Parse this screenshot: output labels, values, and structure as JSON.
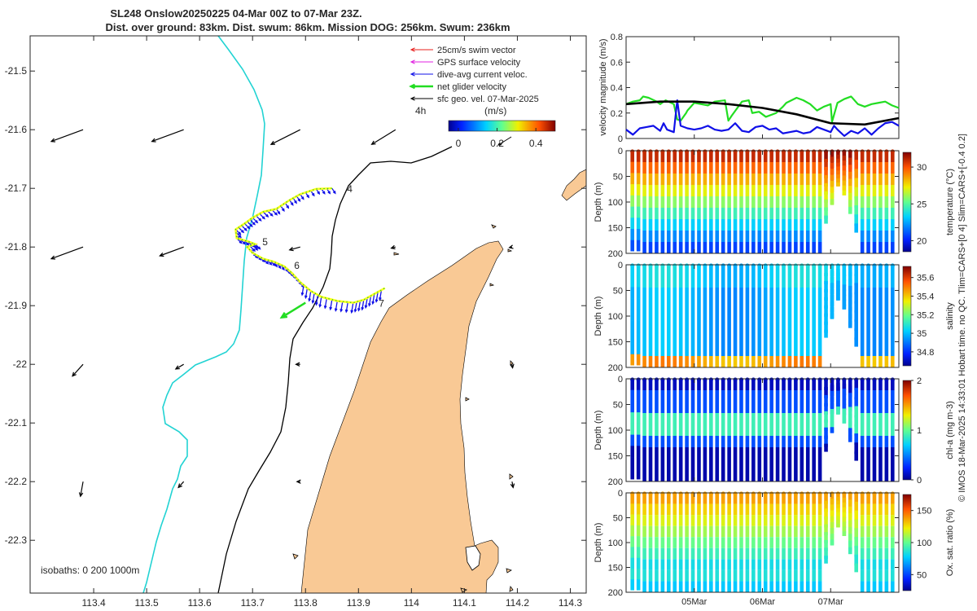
{
  "header": {
    "title_line1": "SL248 Onslow20250225 04-Mar 00Z to 07-Mar 23Z.",
    "title_line2": "Dist. over ground: 83km. Dist. swum: 86km. Mission DOG: 256km. Swum: 236km"
  },
  "colors": {
    "land": "#f9c995",
    "coast200": "#000000",
    "coast0": "#22d3d3",
    "swim": "#e8201e",
    "gps": "#e020e0",
    "current": "#1010e8",
    "net": "#22dd22",
    "geo": "#000000"
  },
  "chart_data": [
    {
      "type": "map",
      "x_ticks": [
        "113.4",
        "113.5",
        "113.6",
        "113.7",
        "113.8",
        "113.9",
        "114",
        "114.1",
        "114.2",
        "114.3"
      ],
      "y_ticks": [
        "-21.5",
        "-21.6",
        "-21.7",
        "-21.8",
        "-21.9",
        "-22",
        "-22.1",
        "-22.2",
        "-22.3"
      ],
      "xlim": [
        113.28,
        114.33
      ],
      "ylim": [
        -22.39,
        -21.44
      ],
      "legend": [
        {
          "label": "25cm/s swim vector",
          "color": "#e8201e"
        },
        {
          "label": "GPS surface velocity",
          "color": "#e020e0"
        },
        {
          "label": "dive-avg current veloc.",
          "color": "#1010e8"
        },
        {
          "label": "net glider velocity",
          "color": "#22dd22"
        },
        {
          "label": "sfc geo. vel. 07-Mar-2025",
          "color": "#000000"
        }
      ],
      "colorbar": {
        "label": "(m/s)",
        "ticks": [
          "0",
          "0.2",
          "0.4"
        ],
        "range": [
          -0.05,
          0.5
        ]
      },
      "time_step_label": "4h",
      "isobaths_label": "isobaths: 0   200  1000m",
      "day_markers": [
        {
          "label": "4",
          "lon": 113.86,
          "lat": -21.7
        },
        {
          "label": "5",
          "lon": 113.7,
          "lat": -21.79
        },
        {
          "label": "6",
          "lon": 113.76,
          "lat": -21.83
        },
        {
          "label": "7",
          "lon": 113.92,
          "lat": -21.895
        }
      ],
      "track": [
        [
          113.85,
          -21.7
        ],
        [
          113.82,
          -21.701
        ],
        [
          113.79,
          -21.71
        ],
        [
          113.77,
          -21.72
        ],
        [
          113.745,
          -21.735
        ],
        [
          113.72,
          -21.74
        ],
        [
          113.7,
          -21.75
        ],
        [
          113.685,
          -21.76
        ],
        [
          113.668,
          -21.77
        ],
        [
          113.67,
          -21.785
        ],
        [
          113.69,
          -21.79
        ],
        [
          113.705,
          -21.795
        ],
        [
          113.69,
          -21.8
        ],
        [
          113.7,
          -21.81
        ],
        [
          113.72,
          -21.82
        ],
        [
          113.74,
          -21.825
        ],
        [
          113.76,
          -21.833
        ],
        [
          113.775,
          -21.845
        ],
        [
          113.79,
          -21.86
        ],
        [
          113.81,
          -21.875
        ],
        [
          113.83,
          -21.885
        ],
        [
          113.86,
          -21.892
        ],
        [
          113.89,
          -21.895
        ],
        [
          113.91,
          -21.89
        ],
        [
          113.93,
          -21.88
        ],
        [
          113.95,
          -21.87
        ]
      ],
      "net_velocity": {
        "from": [
          113.8,
          -21.895
        ],
        "to": [
          113.755,
          -21.92
        ]
      },
      "geo_vectors": [
        {
          "lon": 113.38,
          "lat": -21.6,
          "u": -0.06,
          "v": -0.02
        },
        {
          "lon": 113.57,
          "lat": -21.6,
          "u": -0.06,
          "v": -0.02
        },
        {
          "lon": 113.79,
          "lat": -21.6,
          "u": -0.055,
          "v": -0.025
        },
        {
          "lon": 113.97,
          "lat": -21.6,
          "u": -0.045,
          "v": -0.025
        },
        {
          "lon": 113.38,
          "lat": -21.8,
          "u": -0.06,
          "v": -0.02
        },
        {
          "lon": 113.57,
          "lat": -21.8,
          "u": -0.045,
          "v": -0.015
        },
        {
          "lon": 113.79,
          "lat": -21.8,
          "u": -0.02,
          "v": -0.005
        },
        {
          "lon": 113.97,
          "lat": -21.8,
          "u": -0.008,
          "v": -0.002
        },
        {
          "lon": 114.19,
          "lat": -21.8,
          "u": -0.005,
          "v": -0.001
        },
        {
          "lon": 113.38,
          "lat": -22.0,
          "u": -0.02,
          "v": -0.02
        },
        {
          "lon": 113.57,
          "lat": -22.0,
          "u": -0.015,
          "v": -0.008
        },
        {
          "lon": 113.79,
          "lat": -22.0,
          "u": -0.008,
          "v": 0.0
        },
        {
          "lon": 114.19,
          "lat": -22.0,
          "u": 0.001,
          "v": -0.006
        },
        {
          "lon": 113.38,
          "lat": -22.2,
          "u": -0.005,
          "v": -0.025
        },
        {
          "lon": 113.57,
          "lat": -22.2,
          "u": -0.01,
          "v": -0.01
        },
        {
          "lon": 113.79,
          "lat": -22.2,
          "u": -0.006,
          "v": 0.0
        },
        {
          "lon": 114.19,
          "lat": -22.2,
          "u": 0.002,
          "v": -0.01
        }
      ]
    },
    {
      "type": "line",
      "ylabel": "velocity magnitude (m/s)",
      "ylim": [
        0,
        0.8
      ],
      "y_ticks": [
        "0",
        "0.2",
        "0.4",
        "0.6",
        "0.8"
      ],
      "x_ticks": [
        "05Mar",
        "06Mar",
        "07Mar"
      ],
      "x_days": [
        1,
        2,
        3
      ],
      "xlim": [
        0,
        4
      ],
      "series": [
        {
          "name": "net glider velocity",
          "color": "#22dd22",
          "x": [
            0,
            0.1,
            0.2,
            0.25,
            0.33,
            0.45,
            0.5,
            0.58,
            0.7,
            0.75,
            0.8,
            0.88,
            0.9,
            1.0,
            1.1,
            1.2,
            1.3,
            1.45,
            1.5,
            1.55,
            1.7,
            1.8,
            1.85,
            1.95,
            2.05,
            2.2,
            2.3,
            2.35,
            2.5,
            2.6,
            2.7,
            2.8,
            2.9,
            3.0,
            3.02,
            3.1,
            3.2,
            3.3,
            3.4,
            3.5,
            3.6,
            3.7,
            3.8,
            3.9,
            4.0
          ],
          "y": [
            0.27,
            0.29,
            0.3,
            0.33,
            0.32,
            0.29,
            0.27,
            0.3,
            0.27,
            0.15,
            0.14,
            0.2,
            0.22,
            0.28,
            0.27,
            0.26,
            0.29,
            0.3,
            0.14,
            0.18,
            0.29,
            0.3,
            0.2,
            0.21,
            0.17,
            0.2,
            0.25,
            0.28,
            0.32,
            0.3,
            0.27,
            0.22,
            0.25,
            0.27,
            0.13,
            0.28,
            0.31,
            0.33,
            0.27,
            0.25,
            0.27,
            0.28,
            0.29,
            0.26,
            0.24
          ]
        },
        {
          "name": "dive-avg current veloc.",
          "color": "#1010e8",
          "x": [
            0,
            0.1,
            0.2,
            0.3,
            0.4,
            0.5,
            0.55,
            0.6,
            0.7,
            0.75,
            0.8,
            0.9,
            1.0,
            1.1,
            1.2,
            1.3,
            1.4,
            1.5,
            1.6,
            1.7,
            1.8,
            1.9,
            2.0,
            2.1,
            2.2,
            2.3,
            2.4,
            2.5,
            2.6,
            2.7,
            2.8,
            2.9,
            3.0,
            3.05,
            3.1,
            3.2,
            3.3,
            3.4,
            3.5,
            3.6,
            3.7,
            3.8,
            3.9,
            4.0
          ],
          "y": [
            0.07,
            0.03,
            0.08,
            0.09,
            0.1,
            0.06,
            0.12,
            0.07,
            0.05,
            0.3,
            0.1,
            0.08,
            0.07,
            0.08,
            0.1,
            0.07,
            0.06,
            0.07,
            0.12,
            0.06,
            0.05,
            0.09,
            0.1,
            0.07,
            0.08,
            0.04,
            0.05,
            0.06,
            0.04,
            0.05,
            0.09,
            0.07,
            0.05,
            0.1,
            0.07,
            0.02,
            0.06,
            0.04,
            0.08,
            0.03,
            0.08,
            0.12,
            0.13,
            0.1
          ]
        },
        {
          "name": "sfc geo. vel.",
          "color": "#000000",
          "x": [
            0,
            0.5,
            1.0,
            1.5,
            2.0,
            2.5,
            3.0,
            3.5,
            4.0
          ],
          "y": [
            0.27,
            0.29,
            0.29,
            0.27,
            0.24,
            0.19,
            0.12,
            0.11,
            0.16
          ]
        }
      ]
    },
    {
      "type": "heatmap",
      "name": "temperature",
      "ylabel": "Depth (m)",
      "clabel": "temperature (°C)",
      "y_ticks": [
        "0",
        "50",
        "100",
        "150",
        "200"
      ],
      "ylim": [
        200,
        0
      ],
      "cbar_ticks": [
        "20",
        "25",
        "30"
      ],
      "crange": [
        18.5,
        32
      ]
    },
    {
      "type": "heatmap",
      "name": "salinity",
      "ylabel": "Depth (m)",
      "clabel": "salinity",
      "y_ticks": [
        "0",
        "50",
        "100",
        "150",
        "200"
      ],
      "ylim": [
        200,
        0
      ],
      "cbar_ticks": [
        "34.8",
        "35",
        "35.2",
        "35.4",
        "35.6"
      ],
      "crange": [
        34.65,
        35.72
      ]
    },
    {
      "type": "heatmap",
      "name": "chl-a",
      "ylabel": "Depth (m)",
      "clabel": "chl-a (mg m-3)",
      "y_ticks": [
        "0",
        "50",
        "100",
        "150",
        "200"
      ],
      "ylim": [
        200,
        0
      ],
      "cbar_ticks": [
        "0",
        "1",
        "2"
      ],
      "crange": [
        0,
        2
      ]
    },
    {
      "type": "heatmap",
      "name": "oxygen",
      "ylabel": "Depth (m)",
      "clabel": "Ox. sat. ratio (%)",
      "y_ticks": [
        "0",
        "50",
        "100",
        "150",
        "200"
      ],
      "ylim": [
        200,
        0
      ],
      "cbar_ticks": [
        "50",
        "100",
        "150"
      ],
      "crange": [
        25,
        175
      ],
      "x_ticks": [
        "05Mar",
        "06Mar",
        "07Mar"
      ]
    }
  ],
  "side_note": "© IMOS 18-Mar-2025 14:33:01 Hobart time. no QC. Tlim=CARS+[0 4] Slim=CARS+[-0.4 0.2]"
}
